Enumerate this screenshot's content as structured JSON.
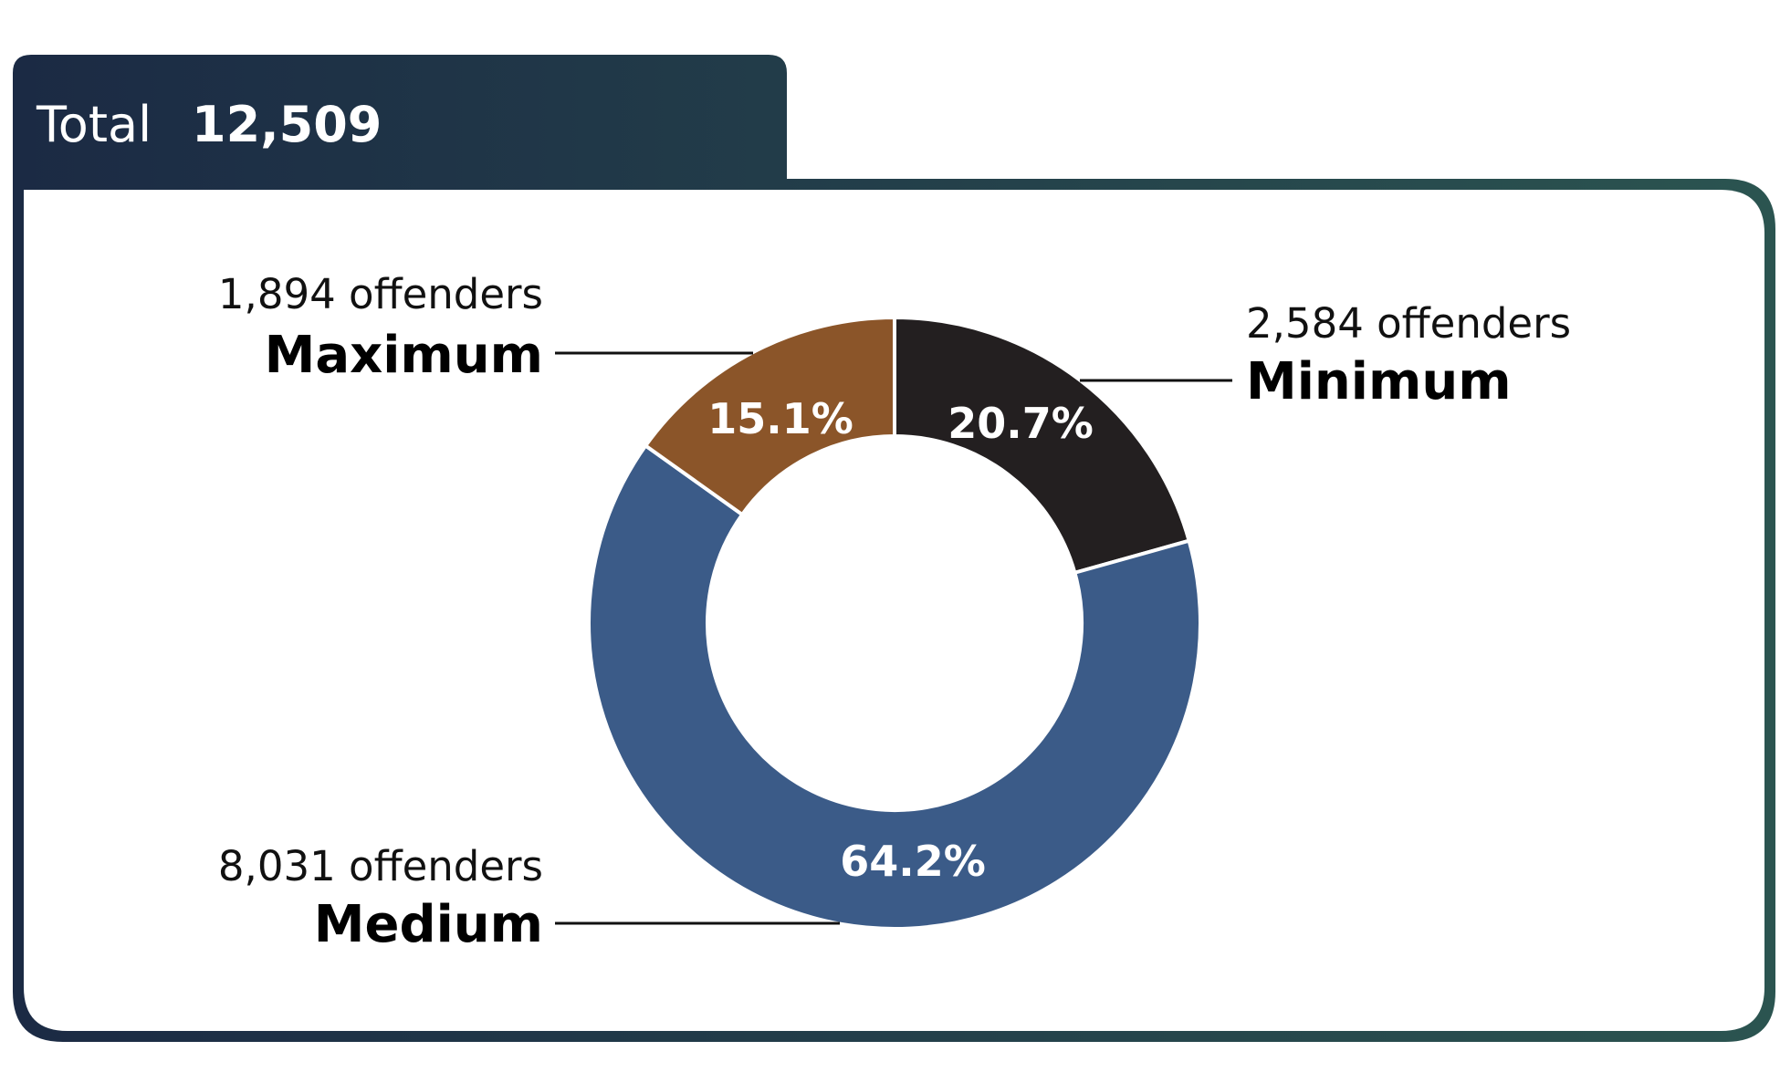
{
  "header": {
    "label": "Total",
    "value": "12,509"
  },
  "colors": {
    "frame_start": "#1b2a44",
    "frame_end": "#2b5450",
    "separator": "#ffffff"
  },
  "chart_data": {
    "type": "pie",
    "style": "donut",
    "total": 12509,
    "slices": [
      {
        "name": "Minimum",
        "count_label": "2,584 offenders",
        "value": 2584,
        "percent": 20.7,
        "percent_label": "20.7%",
        "color": "#231f20"
      },
      {
        "name": "Medium",
        "count_label": "8,031 offenders",
        "value": 8031,
        "percent": 64.2,
        "percent_label": "64.2%",
        "color": "#3b5b88"
      },
      {
        "name": "Maximum",
        "count_label": "1,894 offenders",
        "value": 1894,
        "percent": 15.1,
        "percent_label": "15.1%",
        "color": "#8b5529"
      }
    ]
  }
}
